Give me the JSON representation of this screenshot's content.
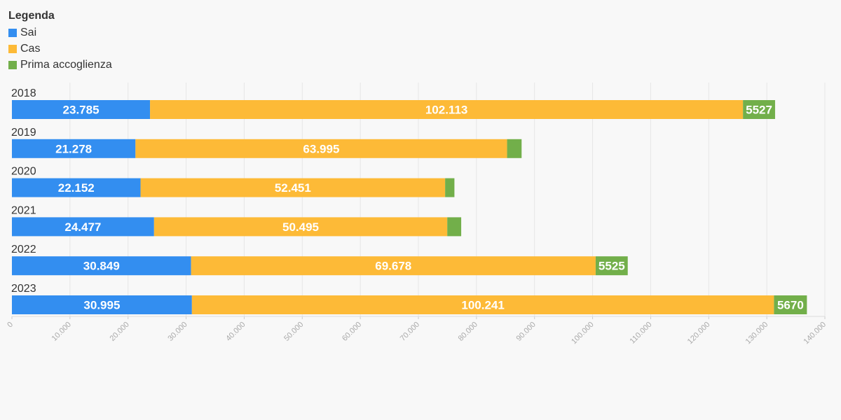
{
  "legend": {
    "title": "Legenda",
    "items": [
      {
        "label": "Sai",
        "color": "#338ef0"
      },
      {
        "label": "Cas",
        "color": "#fdba37"
      },
      {
        "label": "Prima accoglienza",
        "color": "#72af4a"
      }
    ]
  },
  "chart_data": {
    "type": "bar",
    "orientation": "horizontal",
    "stacked": true,
    "categories": [
      "2018",
      "2019",
      "2020",
      "2021",
      "2022",
      "2023"
    ],
    "series": [
      {
        "name": "Sai",
        "color": "#338ef0",
        "values": [
          23785,
          21278,
          22152,
          24477,
          30849,
          30995
        ],
        "labels": [
          "23.785",
          "21.278",
          "22.152",
          "24.477",
          "30.849",
          "30.995"
        ]
      },
      {
        "name": "Cas",
        "color": "#fdba37",
        "values": [
          102113,
          63995,
          52451,
          50495,
          69678,
          100241
        ],
        "labels": [
          "102.113",
          "63.995",
          "52.451",
          "50.495",
          "69.678",
          "100.241"
        ]
      },
      {
        "name": "Prima accoglienza",
        "color": "#72af4a",
        "values": [
          5527,
          2500,
          1600,
          2400,
          5525,
          5670
        ],
        "labels": [
          "5527",
          "",
          "",
          "",
          "5525",
          "5670"
        ]
      }
    ],
    "xlim": [
      0,
      140000
    ],
    "ticks": [
      "0",
      "10.000",
      "20.000",
      "30.000",
      "40.000",
      "50.000",
      "60.000",
      "70.000",
      "80.000",
      "90.000",
      "100.000",
      "110.000",
      "120.000",
      "130.000",
      "140.000"
    ],
    "grid": true,
    "legend_position": "top-left"
  }
}
